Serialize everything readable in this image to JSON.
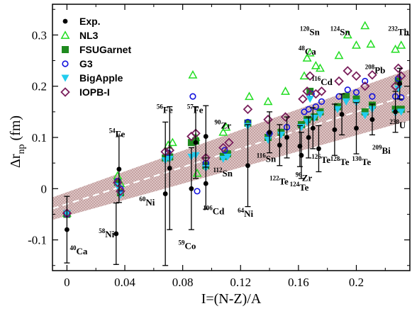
{
  "chart_data": {
    "type": "scatter",
    "title": "",
    "xlabel": "I=(N-Z)/A",
    "ylabel_main": "Δr",
    "ylabel_sub": "np",
    "ylabel_unit": " (fm)",
    "xlim": [
      -0.01,
      0.237
    ],
    "ylim": [
      -0.16,
      0.36
    ],
    "xticks": [
      0,
      0.04,
      0.08,
      0.12,
      0.16,
      0.2
    ],
    "xtick_labels": [
      "0",
      "0.04",
      "0.08",
      "0.12",
      "0.16",
      "0.2"
    ],
    "yticks": [
      -0.1,
      0,
      0.1,
      0.2,
      0.3
    ],
    "ytick_labels": [
      "-0.1",
      "0",
      "0.1",
      "0.2",
      "0.3"
    ],
    "legend_position": "top-left",
    "band": {
      "slope": 0.9,
      "intercept": -0.03,
      "halfwidth_left": 0.022,
      "halfwidth_right": 0.05,
      "color": "#c9a6a6",
      "line_color": "#ffffff"
    },
    "series": [
      {
        "name": "Exp.",
        "marker": "circle-filled",
        "color": "#000000",
        "points": [
          {
            "x": 0.0,
            "y": -0.08,
            "err": 0.065
          },
          {
            "x": 0.034,
            "y": -0.088,
            "err": 0.06
          },
          {
            "x": 0.036,
            "y": 0.038,
            "err": 0.065
          },
          {
            "x": 0.068,
            "y": -0.01,
            "err": 0.14
          },
          {
            "x": 0.071,
            "y": 0.04,
            "err": 0.12
          },
          {
            "x": 0.086,
            "y": 0.0,
            "err": 0.08
          },
          {
            "x": 0.089,
            "y": 0.09,
            "err": 0.07
          },
          {
            "x": 0.096,
            "y": 0.102,
            "err": 0.06
          },
          {
            "x": 0.096,
            "y": 0.01,
            "err": 0.05
          },
          {
            "x": 0.125,
            "y": 0.045,
            "err": 0.08
          },
          {
            "x": 0.14,
            "y": 0.11,
            "err": 0.04
          },
          {
            "x": 0.147,
            "y": 0.085,
            "err": 0.04
          },
          {
            "x": 0.152,
            "y": 0.1,
            "err": 0.04
          },
          {
            "x": 0.161,
            "y": 0.083,
            "err": 0.04
          },
          {
            "x": 0.162,
            "y": 0.065,
            "err": 0.045
          },
          {
            "x": 0.167,
            "y": 0.1,
            "err": 0.04
          },
          {
            "x": 0.17,
            "y": 0.118,
            "err": 0.04
          },
          {
            "x": 0.174,
            "y": 0.078,
            "err": 0.045
          },
          {
            "x": 0.185,
            "y": 0.115,
            "err": 0.05
          },
          {
            "x": 0.19,
            "y": 0.145,
            "err": 0.04
          },
          {
            "x": 0.2,
            "y": 0.118,
            "err": 0.05
          },
          {
            "x": 0.211,
            "y": 0.135,
            "err": 0.03
          },
          {
            "x": 0.227,
            "y": 0.15,
            "err": 0.04
          },
          {
            "x": 0.23,
            "y": 0.205,
            "err": 0.03
          }
        ]
      },
      {
        "name": "NL3",
        "marker": "triangle-up-open",
        "color": "#22dd22",
        "points": [
          {
            "x": 0.0,
            "y": -0.048
          },
          {
            "x": 0.035,
            "y": 0.025
          },
          {
            "x": 0.037,
            "y": 0.01
          },
          {
            "x": 0.07,
            "y": 0.085
          },
          {
            "x": 0.073,
            "y": 0.09
          },
          {
            "x": 0.087,
            "y": 0.222
          },
          {
            "x": 0.089,
            "y": 0.1
          },
          {
            "x": 0.09,
            "y": 0.03
          },
          {
            "x": 0.108,
            "y": 0.11
          },
          {
            "x": 0.11,
            "y": 0.12
          },
          {
            "x": 0.126,
            "y": 0.18
          },
          {
            "x": 0.139,
            "y": 0.17
          },
          {
            "x": 0.151,
            "y": 0.19
          },
          {
            "x": 0.164,
            "y": 0.22
          },
          {
            "x": 0.166,
            "y": 0.255
          },
          {
            "x": 0.168,
            "y": 0.265
          },
          {
            "x": 0.172,
            "y": 0.24
          },
          {
            "x": 0.175,
            "y": 0.235
          },
          {
            "x": 0.188,
            "y": 0.26
          },
          {
            "x": 0.194,
            "y": 0.3
          },
          {
            "x": 0.2,
            "y": 0.28
          },
          {
            "x": 0.206,
            "y": 0.318
          },
          {
            "x": 0.21,
            "y": 0.282
          },
          {
            "x": 0.227,
            "y": 0.272
          },
          {
            "x": 0.231,
            "y": 0.28
          }
        ]
      },
      {
        "name": "FSUGarnet",
        "marker": "square-filled",
        "color": "#1f8a1f",
        "points": [
          {
            "x": 0.0,
            "y": -0.05
          },
          {
            "x": 0.035,
            "y": 0.012
          },
          {
            "x": 0.037,
            "y": -0.008
          },
          {
            "x": 0.068,
            "y": 0.06
          },
          {
            "x": 0.071,
            "y": 0.062
          },
          {
            "x": 0.086,
            "y": 0.09
          },
          {
            "x": 0.089,
            "y": 0.093
          },
          {
            "x": 0.096,
            "y": 0.045
          },
          {
            "x": 0.108,
            "y": 0.063
          },
          {
            "x": 0.111,
            "y": 0.068
          },
          {
            "x": 0.125,
            "y": 0.128
          },
          {
            "x": 0.139,
            "y": 0.1
          },
          {
            "x": 0.148,
            "y": 0.11
          },
          {
            "x": 0.162,
            "y": 0.125
          },
          {
            "x": 0.166,
            "y": 0.135
          },
          {
            "x": 0.168,
            "y": 0.19
          },
          {
            "x": 0.171,
            "y": 0.14
          },
          {
            "x": 0.175,
            "y": 0.15
          },
          {
            "x": 0.187,
            "y": 0.16
          },
          {
            "x": 0.193,
            "y": 0.18
          },
          {
            "x": 0.2,
            "y": 0.175
          },
          {
            "x": 0.206,
            "y": 0.15
          },
          {
            "x": 0.211,
            "y": 0.163
          },
          {
            "x": 0.227,
            "y": 0.155
          },
          {
            "x": 0.229,
            "y": 0.21
          },
          {
            "x": 0.231,
            "y": 0.155
          }
        ]
      },
      {
        "name": "G3",
        "marker": "circle-open",
        "color": "#1111dd",
        "points": [
          {
            "x": 0.0,
            "y": -0.05
          },
          {
            "x": 0.035,
            "y": 0.015
          },
          {
            "x": 0.037,
            "y": 0.0
          },
          {
            "x": 0.07,
            "y": 0.07
          },
          {
            "x": 0.087,
            "y": 0.18
          },
          {
            "x": 0.09,
            "y": -0.005
          },
          {
            "x": 0.096,
            "y": 0.05
          },
          {
            "x": 0.109,
            "y": 0.075
          },
          {
            "x": 0.125,
            "y": 0.13
          },
          {
            "x": 0.14,
            "y": 0.108
          },
          {
            "x": 0.152,
            "y": 0.12
          },
          {
            "x": 0.164,
            "y": 0.15
          },
          {
            "x": 0.167,
            "y": 0.155
          },
          {
            "x": 0.169,
            "y": 0.185
          },
          {
            "x": 0.172,
            "y": 0.16
          },
          {
            "x": 0.176,
            "y": 0.17
          },
          {
            "x": 0.188,
            "y": 0.18
          },
          {
            "x": 0.194,
            "y": 0.193
          },
          {
            "x": 0.2,
            "y": 0.188
          },
          {
            "x": 0.206,
            "y": 0.21
          },
          {
            "x": 0.211,
            "y": 0.18
          },
          {
            "x": 0.227,
            "y": 0.18
          },
          {
            "x": 0.229,
            "y": 0.215
          },
          {
            "x": 0.231,
            "y": 0.178
          }
        ]
      },
      {
        "name": "BigApple",
        "marker": "triangle-down-filled",
        "color": "#22ccee",
        "points": [
          {
            "x": 0.0,
            "y": -0.048
          },
          {
            "x": 0.035,
            "y": 0.005
          },
          {
            "x": 0.037,
            "y": -0.012
          },
          {
            "x": 0.068,
            "y": 0.055
          },
          {
            "x": 0.071,
            "y": 0.058
          },
          {
            "x": 0.086,
            "y": 0.062
          },
          {
            "x": 0.089,
            "y": 0.065
          },
          {
            "x": 0.096,
            "y": 0.04
          },
          {
            "x": 0.108,
            "y": 0.058
          },
          {
            "x": 0.111,
            "y": 0.062
          },
          {
            "x": 0.125,
            "y": 0.122
          },
          {
            "x": 0.139,
            "y": 0.095
          },
          {
            "x": 0.148,
            "y": 0.105
          },
          {
            "x": 0.162,
            "y": 0.12
          },
          {
            "x": 0.166,
            "y": 0.13
          },
          {
            "x": 0.168,
            "y": 0.175
          },
          {
            "x": 0.171,
            "y": 0.138
          },
          {
            "x": 0.175,
            "y": 0.145
          },
          {
            "x": 0.187,
            "y": 0.155
          },
          {
            "x": 0.193,
            "y": 0.17
          },
          {
            "x": 0.2,
            "y": 0.168
          },
          {
            "x": 0.206,
            "y": 0.143
          },
          {
            "x": 0.211,
            "y": 0.155
          },
          {
            "x": 0.227,
            "y": 0.148
          },
          {
            "x": 0.229,
            "y": 0.195
          },
          {
            "x": 0.231,
            "y": 0.15
          }
        ]
      },
      {
        "name": "IOPB-I",
        "marker": "diamond-open",
        "color": "#7a1f5c",
        "points": [
          {
            "x": 0.0,
            "y": -0.048
          },
          {
            "x": 0.035,
            "y": 0.012
          },
          {
            "x": 0.037,
            "y": -0.005
          },
          {
            "x": 0.068,
            "y": 0.072
          },
          {
            "x": 0.071,
            "y": 0.075
          },
          {
            "x": 0.086,
            "y": 0.102
          },
          {
            "x": 0.089,
            "y": 0.108
          },
          {
            "x": 0.096,
            "y": 0.06
          },
          {
            "x": 0.108,
            "y": 0.08
          },
          {
            "x": 0.112,
            "y": 0.09
          },
          {
            "x": 0.125,
            "y": 0.155
          },
          {
            "x": 0.139,
            "y": 0.135
          },
          {
            "x": 0.151,
            "y": 0.14
          },
          {
            "x": 0.163,
            "y": 0.175
          },
          {
            "x": 0.166,
            "y": 0.19
          },
          {
            "x": 0.168,
            "y": 0.22
          },
          {
            "x": 0.172,
            "y": 0.185
          },
          {
            "x": 0.176,
            "y": 0.19
          },
          {
            "x": 0.188,
            "y": 0.21
          },
          {
            "x": 0.194,
            "y": 0.23
          },
          {
            "x": 0.2,
            "y": 0.22
          },
          {
            "x": 0.206,
            "y": 0.2
          },
          {
            "x": 0.211,
            "y": 0.222
          },
          {
            "x": 0.227,
            "y": 0.2
          },
          {
            "x": 0.229,
            "y": 0.235
          },
          {
            "x": 0.231,
            "y": 0.22
          }
        ]
      }
    ],
    "nucleus_labels": [
      {
        "mass": "40",
        "sym": "Ca",
        "x": 0.002,
        "y": -0.128
      },
      {
        "mass": "58",
        "sym": "Ni",
        "x": 0.022,
        "y": -0.095
      },
      {
        "mass": "54",
        "sym": "Fe",
        "x": 0.029,
        "y": 0.101
      },
      {
        "mass": "60",
        "sym": "Ni",
        "x": 0.05,
        "y": -0.033
      },
      {
        "mass": "56",
        "sym": "Fe",
        "x": 0.062,
        "y": 0.148
      },
      {
        "mass": "57",
        "sym": "Fe",
        "x": 0.083,
        "y": 0.148
      },
      {
        "mass": "59",
        "sym": "Co",
        "x": 0.077,
        "y": -0.118
      },
      {
        "mass": "90",
        "sym": "Zr",
        "x": 0.102,
        "y": 0.117
      },
      {
        "mass": "106",
        "sym": "Cd",
        "x": 0.094,
        "y": -0.05
      },
      {
        "mass": "112",
        "sym": "Sn",
        "x": 0.101,
        "y": 0.024
      },
      {
        "mass": "64",
        "sym": "Ni",
        "x": 0.118,
        "y": -0.055
      },
      {
        "mass": "116",
        "sym": "Sn",
        "x": 0.131,
        "y": 0.052
      },
      {
        "mass": "122",
        "sym": "Te",
        "x": 0.14,
        "y": 0.008
      },
      {
        "mass": "124",
        "sym": "Te",
        "x": 0.154,
        "y": -0.004
      },
      {
        "mass": "96",
        "sym": "Zr",
        "x": 0.158,
        "y": 0.015
      },
      {
        "mass": "126",
        "sym": "Te",
        "x": 0.169,
        "y": 0.05
      },
      {
        "mass": "128",
        "sym": "Te",
        "x": 0.182,
        "y": 0.046
      },
      {
        "mass": "130",
        "sym": "Te",
        "x": 0.197,
        "y": 0.046
      },
      {
        "mass": "209",
        "sym": "Bi",
        "x": 0.211,
        "y": 0.068
      },
      {
        "mass": "120",
        "sym": "Sn",
        "x": 0.161,
        "y": 0.3
      },
      {
        "mass": "48",
        "sym": "Ca",
        "x": 0.16,
        "y": 0.262
      },
      {
        "mass": "124",
        "sym": "Sn",
        "x": 0.182,
        "y": 0.3
      },
      {
        "mass": "116",
        "sym": "Cd",
        "x": 0.169,
        "y": 0.202
      },
      {
        "mass": "208",
        "sym": "Pb",
        "x": 0.206,
        "y": 0.225
      },
      {
        "mass": "232",
        "sym": "Th",
        "x": 0.222,
        "y": 0.3
      },
      {
        "mass": "238",
        "sym": "U",
        "x": 0.223,
        "y": 0.118
      }
    ]
  }
}
